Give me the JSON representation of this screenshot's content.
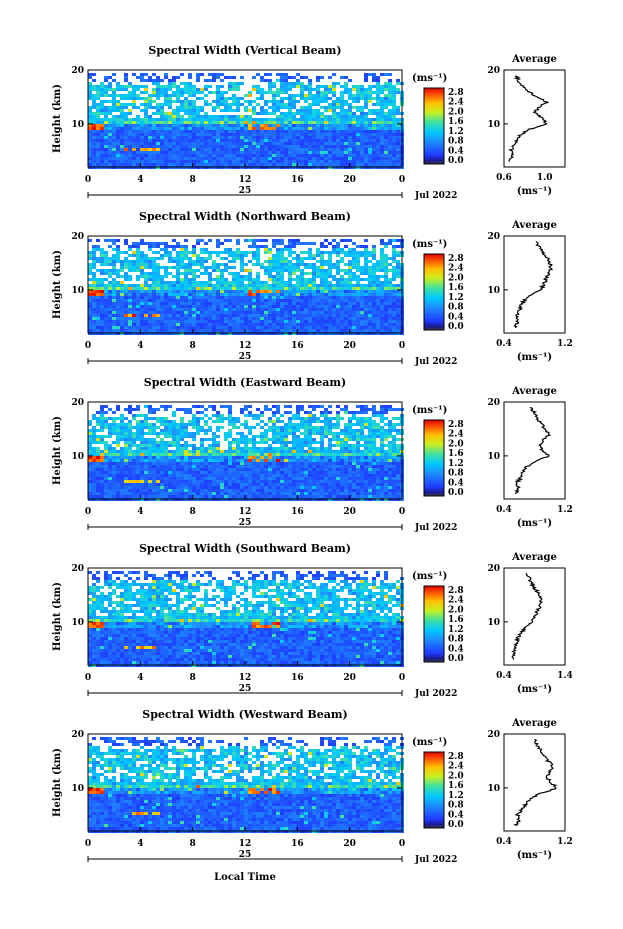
{
  "figure": {
    "xlabel": "Local Time",
    "colorbar_unit": "(ms⁻¹)",
    "avg_title": "Average",
    "avg_unit": "(ms⁻¹)",
    "date_label": "Jul 2022",
    "day_label": "25"
  },
  "chart_data": [
    {
      "type": "heatmap",
      "title": "Spectral Width (Vertical Beam)",
      "ylabel": "Height (km)",
      "xlim": [
        0,
        24
      ],
      "xticks": [
        "0",
        "4",
        "8",
        "12",
        "16",
        "20",
        "0"
      ],
      "ylim": [
        2,
        20
      ],
      "yticks": [
        "10",
        "20"
      ],
      "colorbar": {
        "range": [
          0.0,
          2.8
        ],
        "ticks": [
          "2.8",
          "2.4",
          "2.0",
          "1.6",
          "1.2",
          "0.8",
          "0.4",
          "0.0"
        ]
      },
      "average_profile": {
        "title": "Average",
        "xlim": [
          0.6,
          1.2
        ],
        "xticks": [
          "0.6",
          "1.0"
        ],
        "ylim": [
          2,
          20
        ],
        "yticks": [
          "10",
          "20"
        ],
        "height_km": [
          3,
          4,
          5,
          6,
          7,
          8,
          9,
          10,
          11,
          12,
          13,
          14,
          15,
          16,
          17,
          18,
          19
        ],
        "values": [
          0.66,
          0.68,
          0.67,
          0.7,
          0.72,
          0.76,
          0.85,
          1.02,
          0.98,
          0.9,
          0.94,
          1.02,
          0.92,
          0.84,
          0.78,
          0.74,
          0.72
        ]
      }
    },
    {
      "type": "heatmap",
      "title": "Spectral Width (Northward Beam)",
      "ylabel": "Height (km)",
      "xlim": [
        0,
        24
      ],
      "xticks": [
        "0",
        "4",
        "8",
        "12",
        "16",
        "20",
        "0"
      ],
      "ylim": [
        2,
        20
      ],
      "yticks": [
        "10",
        "20"
      ],
      "colorbar": {
        "range": [
          0.0,
          2.8
        ],
        "ticks": [
          "2.8",
          "2.4",
          "2.0",
          "1.6",
          "1.2",
          "0.8",
          "0.4",
          "0.0"
        ]
      },
      "average_profile": {
        "title": "Average",
        "xlim": [
          0.4,
          1.2
        ],
        "xticks": [
          "0.4",
          "1.2"
        ],
        "ylim": [
          2,
          20
        ],
        "yticks": [
          "10",
          "20"
        ],
        "height_km": [
          3,
          4,
          5,
          6,
          7,
          8,
          9,
          10,
          11,
          12,
          13,
          14,
          15,
          16,
          17,
          18,
          19
        ],
        "values": [
          0.55,
          0.58,
          0.56,
          0.6,
          0.62,
          0.66,
          0.75,
          0.88,
          0.92,
          0.95,
          0.98,
          1.02,
          1.0,
          0.96,
          0.9,
          0.86,
          0.82
        ]
      }
    },
    {
      "type": "heatmap",
      "title": "Spectral Width (Eastward Beam)",
      "ylabel": "Height (km)",
      "xlim": [
        0,
        24
      ],
      "xticks": [
        "0",
        "4",
        "8",
        "12",
        "16",
        "20",
        "0"
      ],
      "ylim": [
        2,
        20
      ],
      "yticks": [
        "10",
        "20"
      ],
      "colorbar": {
        "range": [
          0.0,
          2.8
        ],
        "ticks": [
          "2.8",
          "2.4",
          "2.0",
          "1.6",
          "1.2",
          "0.8",
          "0.4",
          "0.0"
        ]
      },
      "average_profile": {
        "title": "Average",
        "xlim": [
          0.4,
          1.2
        ],
        "xticks": [
          "0.4",
          "1.2"
        ],
        "ylim": [
          2,
          20
        ],
        "yticks": [
          "10",
          "20"
        ],
        "height_km": [
          3,
          4,
          5,
          6,
          7,
          8,
          9,
          10,
          11,
          12,
          13,
          14,
          15,
          16,
          17,
          18,
          19
        ],
        "values": [
          0.55,
          0.6,
          0.57,
          0.62,
          0.65,
          0.7,
          0.82,
          0.98,
          0.9,
          0.86,
          0.92,
          1.0,
          0.94,
          0.88,
          0.84,
          0.8,
          0.74
        ]
      }
    },
    {
      "type": "heatmap",
      "title": "Spectral Width (Southward Beam)",
      "ylabel": "Height (km)",
      "xlim": [
        0,
        24
      ],
      "xticks": [
        "0",
        "4",
        "8",
        "12",
        "16",
        "20",
        "0"
      ],
      "ylim": [
        2,
        20
      ],
      "yticks": [
        "10",
        "20"
      ],
      "colorbar": {
        "range": [
          0.0,
          2.8
        ],
        "ticks": [
          "2.8",
          "2.4",
          "2.0",
          "1.6",
          "1.2",
          "0.8",
          "0.4",
          "0.0"
        ]
      },
      "average_profile": {
        "title": "Average",
        "xlim": [
          0.4,
          1.4
        ],
        "xticks": [
          "0.4",
          "1.4"
        ],
        "ylim": [
          2,
          20
        ],
        "yticks": [
          "10",
          "20"
        ],
        "height_km": [
          3,
          4,
          5,
          6,
          7,
          8,
          9,
          10,
          11,
          12,
          13,
          14,
          15,
          16,
          17,
          18,
          19
        ],
        "values": [
          0.55,
          0.58,
          0.56,
          0.6,
          0.63,
          0.68,
          0.76,
          0.86,
          0.9,
          0.95,
          1.0,
          1.02,
          0.98,
          0.92,
          0.86,
          0.82,
          0.78
        ]
      }
    },
    {
      "type": "heatmap",
      "title": "Spectral Width (Westward Beam)",
      "ylabel": "Height (km)",
      "xlim": [
        0,
        24
      ],
      "xticks": [
        "0",
        "4",
        "8",
        "12",
        "16",
        "20",
        "0"
      ],
      "ylim": [
        2,
        20
      ],
      "yticks": [
        "10",
        "20"
      ],
      "colorbar": {
        "range": [
          0.0,
          2.8
        ],
        "ticks": [
          "2.8",
          "2.4",
          "2.0",
          "1.6",
          "1.2",
          "0.8",
          "0.4",
          "0.0"
        ]
      },
      "average_profile": {
        "title": "Average",
        "xlim": [
          0.4,
          1.2
        ],
        "xticks": [
          "0.4",
          "1.2"
        ],
        "ylim": [
          2,
          20
        ],
        "yticks": [
          "10",
          "20"
        ],
        "height_km": [
          3,
          4,
          5,
          6,
          7,
          8,
          9,
          10,
          11,
          12,
          13,
          14,
          15,
          16,
          17,
          18,
          19
        ],
        "values": [
          0.56,
          0.6,
          0.58,
          0.64,
          0.68,
          0.74,
          0.88,
          1.1,
          1.02,
          0.96,
          1.0,
          1.05,
          0.98,
          0.92,
          0.88,
          0.84,
          0.8
        ]
      }
    }
  ]
}
